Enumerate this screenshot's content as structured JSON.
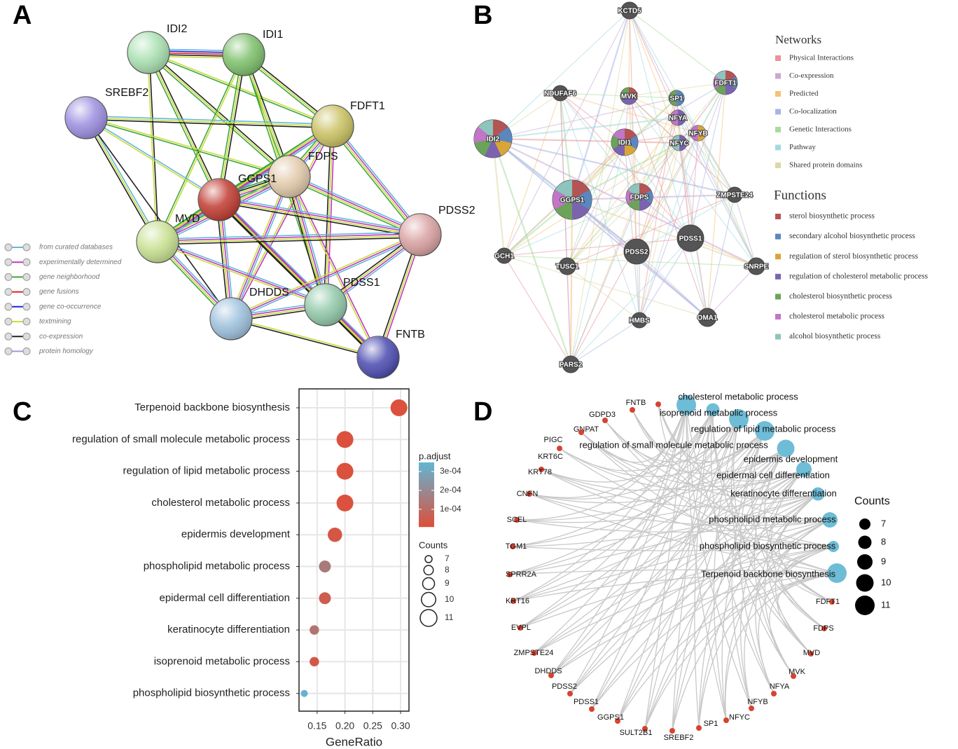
{
  "panel_labels": [
    "A",
    "B",
    "C",
    "D"
  ],
  "network_a": {
    "nodes": [
      "IDI2",
      "IDI1",
      "SREBF2",
      "FDFT1",
      "FDPS",
      "GGPS1",
      "MVD",
      "PDSS2",
      "DHDDS",
      "PDSS1",
      "FNTB"
    ],
    "legend": [
      {
        "label": "from curated databases",
        "color": "#63b8d9"
      },
      {
        "label": "experimentally determined",
        "color": "#c138c1"
      },
      {
        "label": "gene neighborhood",
        "color": "#3fa63f"
      },
      {
        "label": "gene fusions",
        "color": "#e02020"
      },
      {
        "label": "gene co-occurrence",
        "color": "#2020e0"
      },
      {
        "label": "textmining",
        "color": "#c8dc3c"
      },
      {
        "label": "co-expression",
        "color": "#222222"
      },
      {
        "label": "protein homology",
        "color": "#9a9ae0"
      }
    ]
  },
  "network_b": {
    "nodes": [
      "KCTD5",
      "NDUFAF6",
      "MVK",
      "SP1",
      "FDFT1",
      "IDI2",
      "IDI1",
      "NFYA",
      "NFYB",
      "NFYC",
      "GGPS1",
      "FDPS",
      "ZMPSTE24",
      "PDSS1",
      "PDSS2",
      "GCH1",
      "TUSC1",
      "SNRPE",
      "HMBS",
      "OMA1",
      "PARS2"
    ],
    "networks_title": "Networks",
    "networks": [
      {
        "label": "Physical Interactions",
        "color": "#e8959a"
      },
      {
        "label": "Co-expression",
        "color": "#c9a7d6"
      },
      {
        "label": "Predicted",
        "color": "#f3c177"
      },
      {
        "label": "Co-localization",
        "color": "#a8b5e3"
      },
      {
        "label": "Genetic Interactions",
        "color": "#a8dc9c"
      },
      {
        "label": "Pathway",
        "color": "#a3d9df"
      },
      {
        "label": "Shared protein domains",
        "color": "#dcd7a5"
      }
    ],
    "functions_title": "Functions",
    "functions": [
      {
        "label": "sterol biosynthetic process",
        "color": "#b55454"
      },
      {
        "label": "secondary alcohol biosynthetic process",
        "color": "#5a87c0"
      },
      {
        "label": "regulation of sterol biosynthetic process",
        "color": "#d8a638"
      },
      {
        "label": "regulation of cholesterol metabolic process",
        "color": "#7b63b0"
      },
      {
        "label": "cholesterol biosynthetic process",
        "color": "#6ba35a"
      },
      {
        "label": "cholesterol metabolic process",
        "color": "#c276c8"
      },
      {
        "label": "alcohol biosynthetic process",
        "color": "#8ec4bc"
      }
    ]
  },
  "chart_data": {
    "type": "dot",
    "categories": [
      "Terpenoid backbone biosynthesis",
      "regulation of small molecule metabolic process",
      "regulation of lipid metabolic process",
      "cholesterol metabolic process",
      "epidermis development",
      "phospholipid metabolic process",
      "epidermal cell differentiation",
      "keratinocyte differentiation",
      "isoprenoid metabolic process",
      "phospholipid biosynthetic process"
    ],
    "values": [
      0.297,
      0.2,
      0.2,
      0.2,
      0.182,
      0.164,
      0.164,
      0.145,
      0.145,
      0.127
    ],
    "counts": [
      11,
      11,
      11,
      11,
      10,
      9,
      9,
      8,
      8,
      7
    ],
    "p_adjust": [
      1e-05,
      1e-05,
      1e-05,
      1e-05,
      3e-05,
      0.00015,
      5e-05,
      0.00013,
      3e-05,
      0.00034
    ],
    "xlabel": "GeneRatio",
    "xlim": [
      0.1175,
      0.315
    ],
    "xticks": [
      0.15,
      {
        "value": 0.2,
        "label": "0.20"
      },
      0.25,
      {
        "value": 0.3,
        "label": "0.30"
      }
    ],
    "grid": true,
    "color_title": "p.adjust",
    "colorscale": [
      "#dc503c",
      "#64b4d2"
    ],
    "clim": [
      7e-06,
      0.000348
    ],
    "cticks": [
      {
        "value": 0.0003,
        "label": "3e-04"
      },
      {
        "value": 0.0002,
        "label": "2e-04"
      },
      {
        "value": 0.0001,
        "label": "1e-04"
      }
    ],
    "size_title": "Counts",
    "size_ticks": [
      7,
      8,
      9,
      10,
      11
    ]
  },
  "network_d": {
    "categories": [
      "cholesterol metabolic process",
      "isoprenoid metabolic process",
      "regulation of lipid metabolic process",
      "regulation of small molecule metabolic process",
      "epidermis development",
      "epidermal cell differentiation",
      "keratinocyte differentiation",
      "phospholipid metabolic process",
      "phospholipid biosynthetic process",
      "Terpenoid backbone biosynthesis"
    ],
    "counts": [
      11,
      8,
      11,
      11,
      10,
      9,
      8,
      9,
      7,
      11
    ],
    "genes": [
      "FNTB",
      "GDPD3",
      "GNPAT",
      "PIGC",
      "KRT6C",
      "KRT78",
      "CNFN",
      "SCEL",
      "TGM1",
      "SPRR2A",
      "KRT16",
      "EVPL",
      "ZMPSTE24",
      "DHDDS",
      "PDSS2",
      "PDSS1",
      "GGPS1",
      "SULT2B1",
      "SREBF2",
      "SP1",
      "NFYC",
      "NFYB",
      "NFYA",
      "MVK",
      "MVD",
      "FDPS",
      "FDFT1"
    ],
    "size_title": "Counts",
    "size_ticks": [
      7,
      8,
      9,
      10,
      11
    ],
    "category_color": "#6fbcd6",
    "gene_color": "#d6432f"
  }
}
